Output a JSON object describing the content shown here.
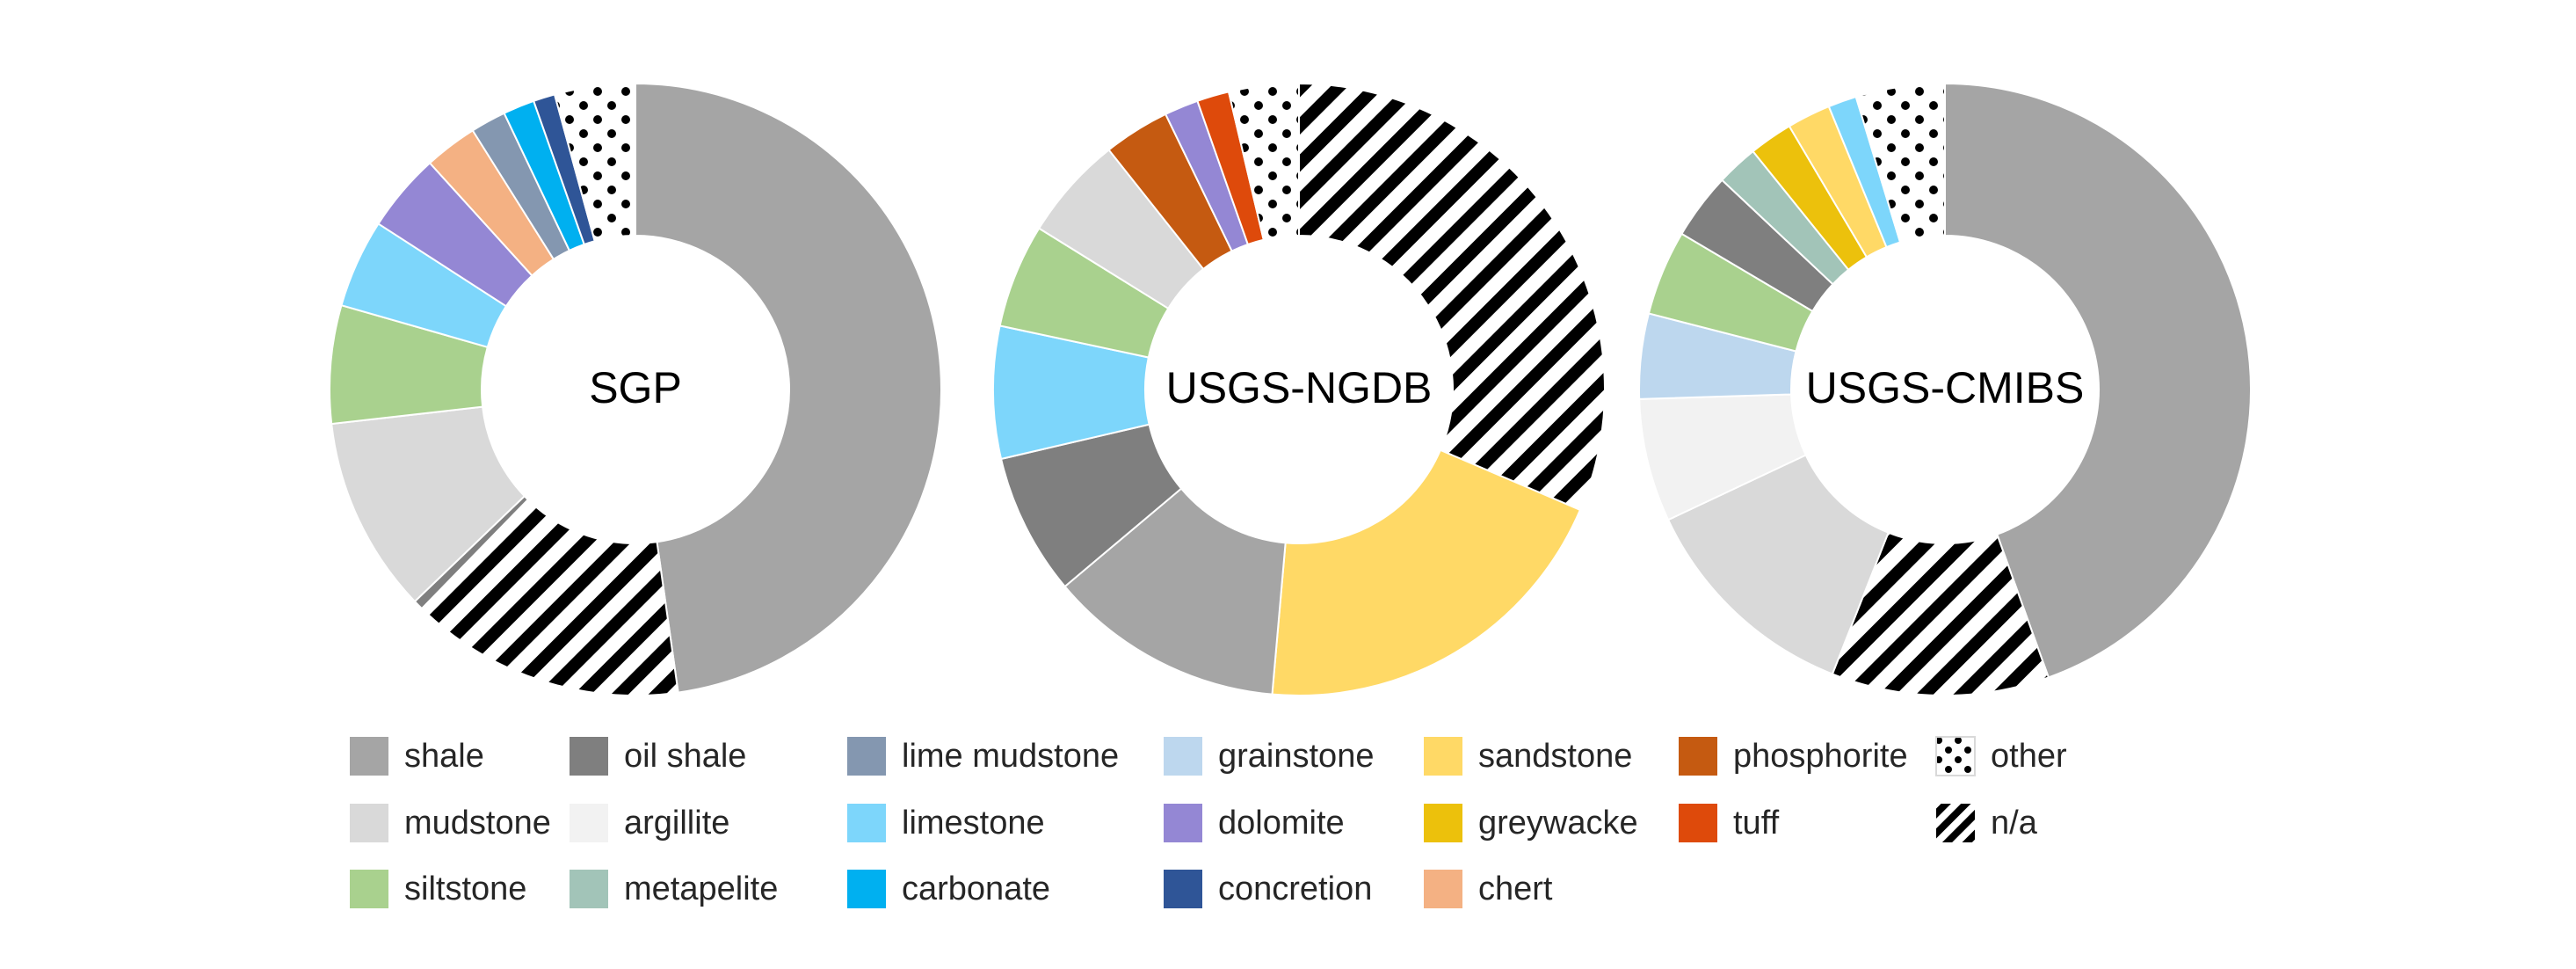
{
  "chart_data": {
    "type": "pie",
    "variant": "donut",
    "categories": [
      {
        "key": "shale",
        "label": "shale",
        "color": "#a5a5a5"
      },
      {
        "key": "oil_shale",
        "label": "oil shale",
        "color": "#7f7f7f"
      },
      {
        "key": "lime_mudstone",
        "label": "lime mudstone",
        "color": "#8497b0"
      },
      {
        "key": "grainstone",
        "label": "grainstone",
        "color": "#bdd7ee"
      },
      {
        "key": "sandstone",
        "label": "sandstone",
        "color": "#ffd966"
      },
      {
        "key": "phosphorite",
        "label": "phosphorite",
        "color": "#c55a11"
      },
      {
        "key": "other",
        "label": "other",
        "color": "#000000",
        "pattern": "dots"
      },
      {
        "key": "mudstone",
        "label": "mudstone",
        "color": "#d9d9d9"
      },
      {
        "key": "argillite",
        "label": "argillite",
        "color": "#f2f2f2"
      },
      {
        "key": "limestone",
        "label": "limestone",
        "color": "#7dd6fb"
      },
      {
        "key": "dolomite",
        "label": "dolomite",
        "color": "#9487d4"
      },
      {
        "key": "greywacke",
        "label": "greywacke",
        "color": "#ecc10c"
      },
      {
        "key": "tuff",
        "label": "tuff",
        "color": "#de4a0b"
      },
      {
        "key": "na",
        "label": "n/a",
        "color": "#000000",
        "pattern": "stripes"
      },
      {
        "key": "siltstone",
        "label": "siltstone",
        "color": "#a9d18e"
      },
      {
        "key": "metapelite",
        "label": "metapelite",
        "color": "#a2c4b8"
      },
      {
        "key": "carbonate",
        "label": "carbonate",
        "color": "#00b0f0"
      },
      {
        "key": "concretion",
        "label": "concretion",
        "color": "#2f5597"
      },
      {
        "key": "chert",
        "label": "chert",
        "color": "#f4b183"
      }
    ],
    "legend_position": "bottom",
    "charts": [
      {
        "label": "SGP",
        "slices": [
          {
            "key": "shale",
            "value": 46.0
          },
          {
            "key": "na",
            "value": 14.0
          },
          {
            "key": "oil_shale",
            "value": 0.5
          },
          {
            "key": "mudstone",
            "value": 10.0
          },
          {
            "key": "siltstone",
            "value": 6.0
          },
          {
            "key": "limestone",
            "value": 4.5
          },
          {
            "key": "dolomite",
            "value": 4.0
          },
          {
            "key": "chert",
            "value": 2.7
          },
          {
            "key": "lime_mudstone",
            "value": 1.8
          },
          {
            "key": "carbonate",
            "value": 1.6
          },
          {
            "key": "concretion",
            "value": 1.1
          },
          {
            "key": "other",
            "value": 4.1
          }
        ]
      },
      {
        "label": "USGS-NGDB",
        "slices": [
          {
            "key": "na",
            "value": 31.5
          },
          {
            "key": "sandstone",
            "value": 20.0
          },
          {
            "key": "shale",
            "value": 12.5
          },
          {
            "key": "oil_shale",
            "value": 7.5
          },
          {
            "key": "limestone",
            "value": 7.0
          },
          {
            "key": "siltstone",
            "value": 5.5
          },
          {
            "key": "mudstone",
            "value": 5.5
          },
          {
            "key": "phosphorite",
            "value": 3.5
          },
          {
            "key": "dolomite",
            "value": 1.8
          },
          {
            "key": "tuff",
            "value": 1.7
          },
          {
            "key": "other",
            "value": 3.7
          }
        ]
      },
      {
        "label": "USGS-CMIBS",
        "slices": [
          {
            "key": "shale",
            "value": 44.5
          },
          {
            "key": "na",
            "value": 11.5
          },
          {
            "key": "mudstone",
            "value": 12.0
          },
          {
            "key": "argillite",
            "value": 6.5
          },
          {
            "key": "grainstone",
            "value": 4.5
          },
          {
            "key": "siltstone",
            "value": 4.5
          },
          {
            "key": "oil_shale",
            "value": 3.5
          },
          {
            "key": "metapelite",
            "value": 2.2
          },
          {
            "key": "greywacke",
            "value": 2.3
          },
          {
            "key": "sandstone",
            "value": 2.3
          },
          {
            "key": "limestone",
            "value": 1.5
          },
          {
            "key": "other",
            "value": 4.7
          }
        ]
      }
    ]
  }
}
